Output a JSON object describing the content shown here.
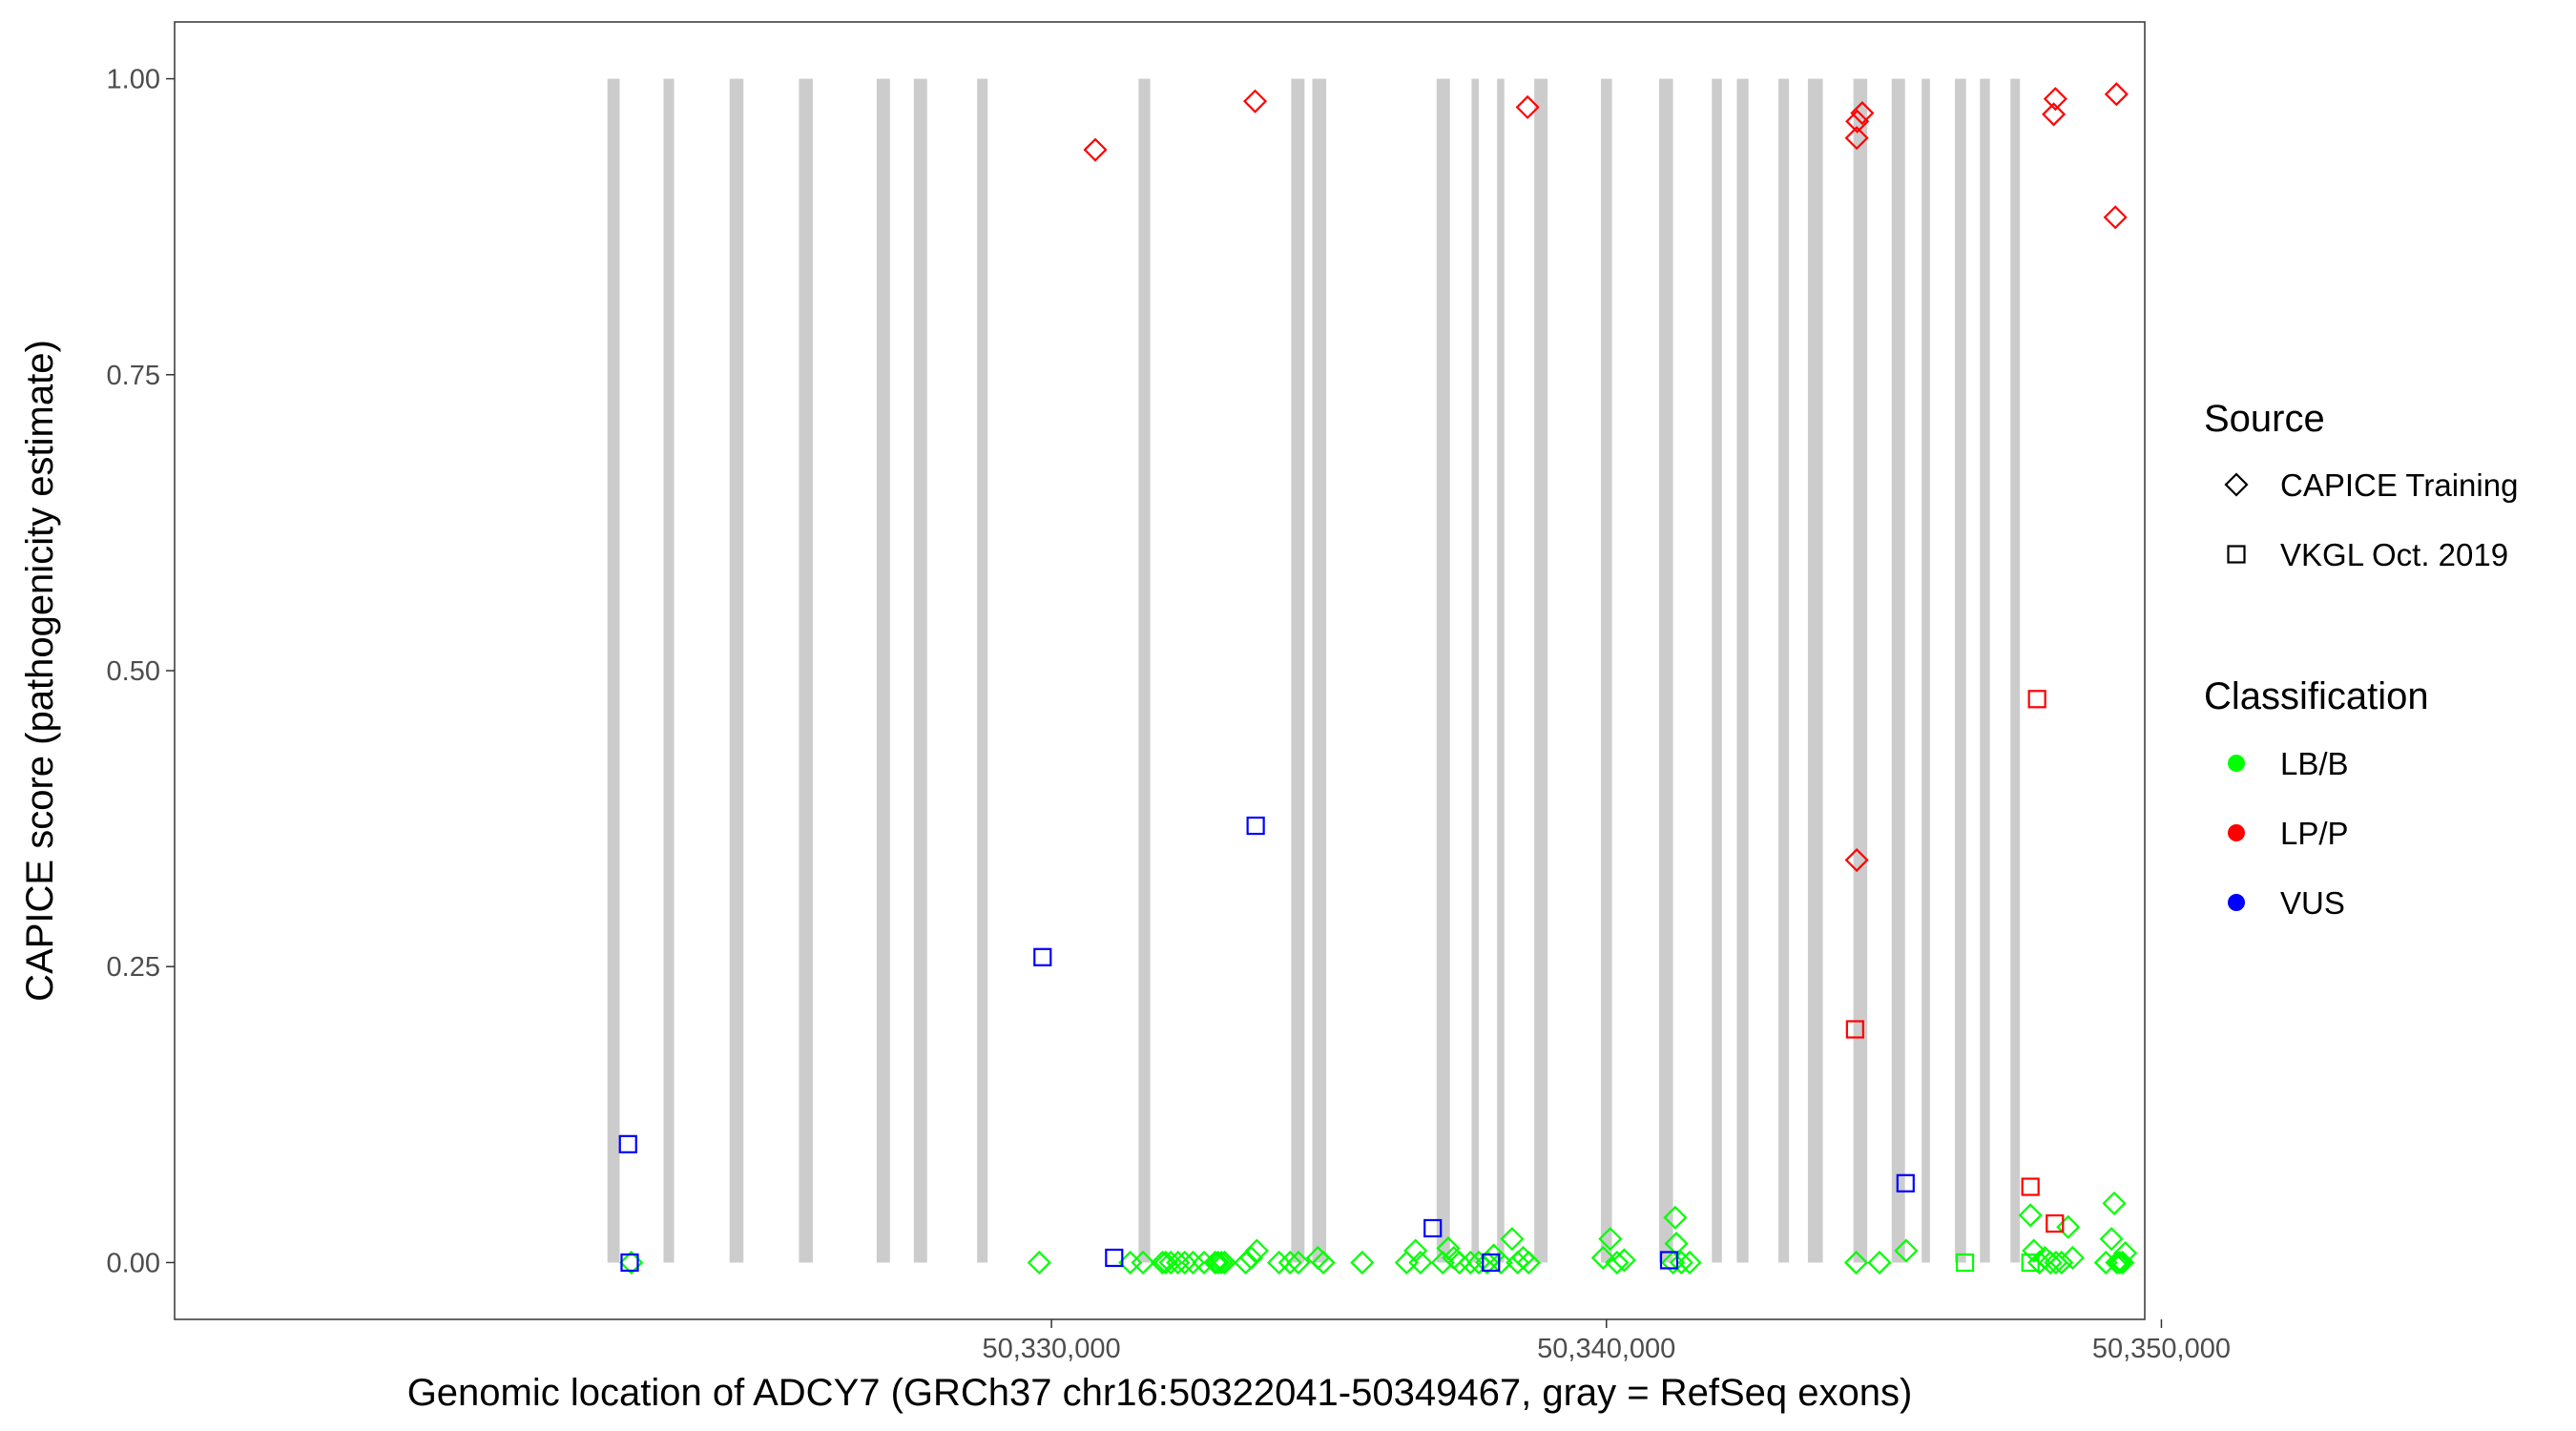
{
  "chart_data": {
    "type": "scatter",
    "xlabel": "Genomic location of ADCY7 (GRCh37 chr16:50322041-50349467, gray = RefSeq exons)",
    "ylabel": "CAPICE score (pathogenicity estimate)",
    "xlim": [
      50314200,
      50349700
    ],
    "ylim": [
      -0.048,
      1.048
    ],
    "x_ticks": [
      50330000,
      50340000,
      50350000
    ],
    "x_tick_labels": [
      "50,330,000",
      "50,340,000",
      "50,350,000"
    ],
    "y_ticks": [
      0,
      0.25,
      0.5,
      0.75,
      1
    ],
    "y_tick_labels": [
      "0.00",
      "0.25",
      "0.50",
      "0.75",
      "1.00"
    ],
    "grid": false,
    "legend_position": "right",
    "exons": [
      [
        50322000,
        50322220
      ],
      [
        50323010,
        50323200
      ],
      [
        50324200,
        50324450
      ],
      [
        50325450,
        50325700
      ],
      [
        50326850,
        50327090
      ],
      [
        50327520,
        50327760
      ],
      [
        50328660,
        50328850
      ],
      [
        50331570,
        50331780
      ],
      [
        50334320,
        50334560
      ],
      [
        50334700,
        50334950
      ],
      [
        50336940,
        50337180
      ],
      [
        50337570,
        50337700
      ],
      [
        50338030,
        50338160
      ],
      [
        50338700,
        50338940
      ],
      [
        50339900,
        50340100
      ],
      [
        50340950,
        50341200
      ],
      [
        50341900,
        50342080
      ],
      [
        50342350,
        50342560
      ],
      [
        50343100,
        50343290
      ],
      [
        50343630,
        50343900
      ],
      [
        50344450,
        50344700
      ],
      [
        50345140,
        50345380
      ],
      [
        50345680,
        50345830
      ],
      [
        50346280,
        50346480
      ],
      [
        50346730,
        50346910
      ],
      [
        50347280,
        50347450
      ]
    ],
    "legend": {
      "source_title": "Source",
      "source_items": [
        {
          "label": "CAPICE Training",
          "shape": "diamond"
        },
        {
          "label": "VKGL Oct. 2019",
          "shape": "square"
        }
      ],
      "class_title": "Classification",
      "class_items": [
        {
          "label": "LB/B",
          "color": "#00ff00"
        },
        {
          "label": "LP/P",
          "color": "#ff0000"
        },
        {
          "label": "VUS",
          "color": "#0000ff"
        }
      ]
    },
    "colors": {
      "LB/B": "#00ff00",
      "LP/P": "#ff0000",
      "VUS": "#0000ff",
      "exon": "#cccccc"
    },
    "series": [
      {
        "source": "CAPICE Training",
        "classification": "LP/P",
        "shape": "diamond",
        "points": [
          [
            50330790,
            0.94
          ],
          [
            50333670,
            0.981
          ],
          [
            50338580,
            0.976
          ],
          [
            50344510,
            0.95
          ],
          [
            50344520,
            0.964
          ],
          [
            50344610,
            0.971
          ],
          [
            50344510,
            0.34
          ],
          [
            50348090,
            0.983
          ],
          [
            50348060,
            0.97
          ],
          [
            50349190,
            0.987
          ],
          [
            50349170,
            0.883
          ]
        ]
      },
      {
        "source": "CAPICE Training",
        "classification": "LB/B",
        "shape": "diamond",
        "points": [
          [
            50322430,
            0.0
          ],
          [
            50329780,
            0.0
          ],
          [
            50331420,
            0.0
          ],
          [
            50331650,
            0.0
          ],
          [
            50332000,
            0.0
          ],
          [
            50332060,
            0.0
          ],
          [
            50332150,
            0.0
          ],
          [
            50332280,
            0.0
          ],
          [
            50332400,
            0.0
          ],
          [
            50332550,
            0.0
          ],
          [
            50332750,
            0.0
          ],
          [
            50332950,
            0.0
          ],
          [
            50333000,
            0.0
          ],
          [
            50333060,
            0.0
          ],
          [
            50333120,
            0.0
          ],
          [
            50333500,
            0.0
          ],
          [
            50333600,
            0.004
          ],
          [
            50333700,
            0.01
          ],
          [
            50334100,
            0.0
          ],
          [
            50334300,
            0.0
          ],
          [
            50334450,
            0.0
          ],
          [
            50334800,
            0.004
          ],
          [
            50334900,
            0.0
          ],
          [
            50335600,
            0.0
          ],
          [
            50336400,
            0.0
          ],
          [
            50336560,
            0.01
          ],
          [
            50336650,
            0.0
          ],
          [
            50337050,
            0.0
          ],
          [
            50337150,
            0.012
          ],
          [
            50337250,
            0.004
          ],
          [
            50337350,
            0.0
          ],
          [
            50337550,
            0.0
          ],
          [
            50337700,
            0.0
          ],
          [
            50337850,
            0.0
          ],
          [
            50337970,
            0.006
          ],
          [
            50338100,
            0.0
          ],
          [
            50338300,
            0.02
          ],
          [
            50338400,
            0.0
          ],
          [
            50338500,
            0.004
          ],
          [
            50338600,
            0.0
          ],
          [
            50339940,
            0.004
          ],
          [
            50340070,
            0.02
          ],
          [
            50340190,
            0.0
          ],
          [
            50340320,
            0.002
          ],
          [
            50341240,
            0.038
          ],
          [
            50341260,
            0.016
          ],
          [
            50341200,
            0.0
          ],
          [
            50341350,
            0.0
          ],
          [
            50341500,
            0.0
          ],
          [
            50344500,
            0.0
          ],
          [
            50344920,
            0.0
          ],
          [
            50345400,
            0.01
          ],
          [
            50347640,
            0.04
          ],
          [
            50347700,
            0.01
          ],
          [
            50347800,
            0.0
          ],
          [
            50347900,
            0.004
          ],
          [
            50348000,
            0.0
          ],
          [
            50348100,
            0.0
          ],
          [
            50348200,
            0.0
          ],
          [
            50348320,
            0.03
          ],
          [
            50348400,
            0.004
          ],
          [
            50349000,
            0.0
          ],
          [
            50349100,
            0.02
          ],
          [
            50349150,
            0.05
          ],
          [
            50349200,
            0.0
          ],
          [
            50349250,
            0.0
          ],
          [
            50349300,
            0.0
          ],
          [
            50349350,
            0.008
          ]
        ]
      },
      {
        "source": "VKGL Oct. 2019",
        "classification": "VUS",
        "shape": "square",
        "points": [
          [
            50322370,
            0.1
          ],
          [
            50322400,
            0.0
          ],
          [
            50329840,
            0.258
          ],
          [
            50331130,
            0.004
          ],
          [
            50333680,
            0.369
          ],
          [
            50336870,
            0.029
          ],
          [
            50337920,
            0.0
          ],
          [
            50341130,
            0.002
          ],
          [
            50345390,
            0.067
          ]
        ]
      },
      {
        "source": "VKGL Oct. 2019",
        "classification": "LP/P",
        "shape": "square",
        "points": [
          [
            50344480,
            0.197
          ],
          [
            50347640,
            0.064
          ],
          [
            50347760,
            0.476
          ],
          [
            50348080,
            0.033
          ]
        ]
      },
      {
        "source": "VKGL Oct. 2019",
        "classification": "LB/B",
        "shape": "square",
        "points": [
          [
            50346460,
            0.0
          ],
          [
            50347640,
            0.0
          ]
        ]
      }
    ]
  }
}
